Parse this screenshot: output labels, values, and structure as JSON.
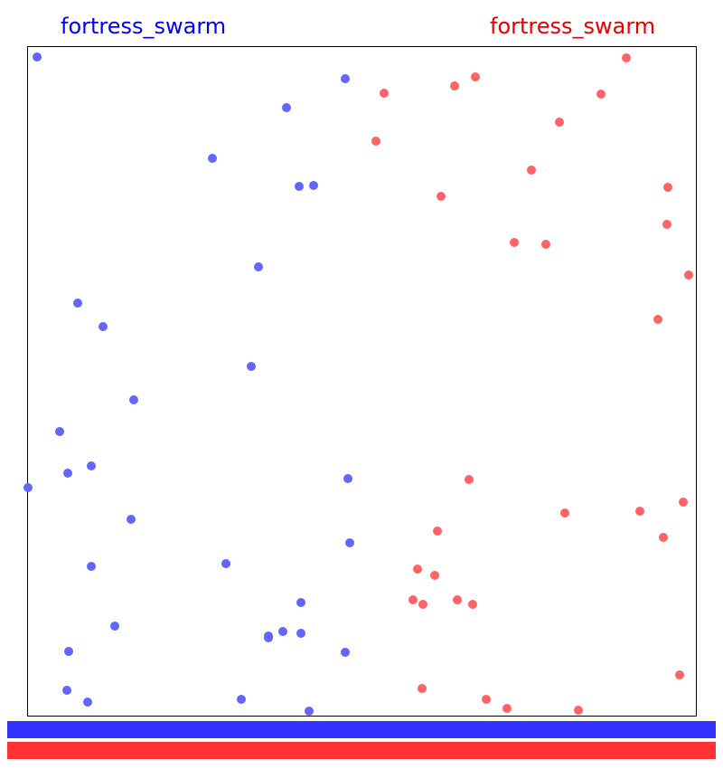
{
  "teams": {
    "blue": {
      "name": "fortress_swarm",
      "color": "#0000ff",
      "unit_color": "#6464ff",
      "bar_color": "#3333ff",
      "health_fraction": 1.0,
      "units": [
        [
          41,
          63
        ],
        [
          382,
          87
        ],
        [
          317,
          119
        ],
        [
          235,
          175
        ],
        [
          331,
          206
        ],
        [
          347,
          205
        ],
        [
          286,
          295
        ],
        [
          86,
          335
        ],
        [
          114,
          361
        ],
        [
          278,
          405
        ],
        [
          148,
          442
        ],
        [
          66,
          477
        ],
        [
          75,
          523
        ],
        [
          101,
          515
        ],
        [
          31,
          539
        ],
        [
          385,
          529
        ],
        [
          145,
          574
        ],
        [
          387,
          600
        ],
        [
          101,
          626
        ],
        [
          250,
          623
        ],
        [
          333,
          666
        ],
        [
          127,
          692
        ],
        [
          297,
          703
        ],
        [
          297,
          705
        ],
        [
          313,
          698
        ],
        [
          333,
          700
        ],
        [
          76,
          720
        ],
        [
          382,
          721
        ],
        [
          74,
          763
        ],
        [
          97,
          776
        ],
        [
          267,
          773
        ],
        [
          342,
          786
        ]
      ]
    },
    "red": {
      "name": "fortress_swarm",
      "color": "#e60000",
      "unit_color": "#ff6464",
      "bar_color": "#ff3333",
      "health_fraction": 1.0,
      "units": [
        [
          693,
          64
        ],
        [
          526,
          85
        ],
        [
          503,
          95
        ],
        [
          425,
          103
        ],
        [
          665,
          104
        ],
        [
          619,
          135
        ],
        [
          416,
          156
        ],
        [
          588,
          188
        ],
        [
          488,
          217
        ],
        [
          739,
          207
        ],
        [
          738,
          248
        ],
        [
          569,
          268
        ],
        [
          604,
          270
        ],
        [
          762,
          304
        ],
        [
          728,
          353
        ],
        [
          519,
          530
        ],
        [
          625,
          567
        ],
        [
          756,
          555
        ],
        [
          708,
          565
        ],
        [
          734,
          594
        ],
        [
          484,
          587
        ],
        [
          462,
          629
        ],
        [
          481,
          636
        ],
        [
          457,
          663
        ],
        [
          468,
          668
        ],
        [
          506,
          663
        ],
        [
          523,
          668
        ],
        [
          752,
          746
        ],
        [
          467,
          761
        ],
        [
          538,
          773
        ],
        [
          561,
          783
        ],
        [
          640,
          785
        ]
      ]
    }
  }
}
